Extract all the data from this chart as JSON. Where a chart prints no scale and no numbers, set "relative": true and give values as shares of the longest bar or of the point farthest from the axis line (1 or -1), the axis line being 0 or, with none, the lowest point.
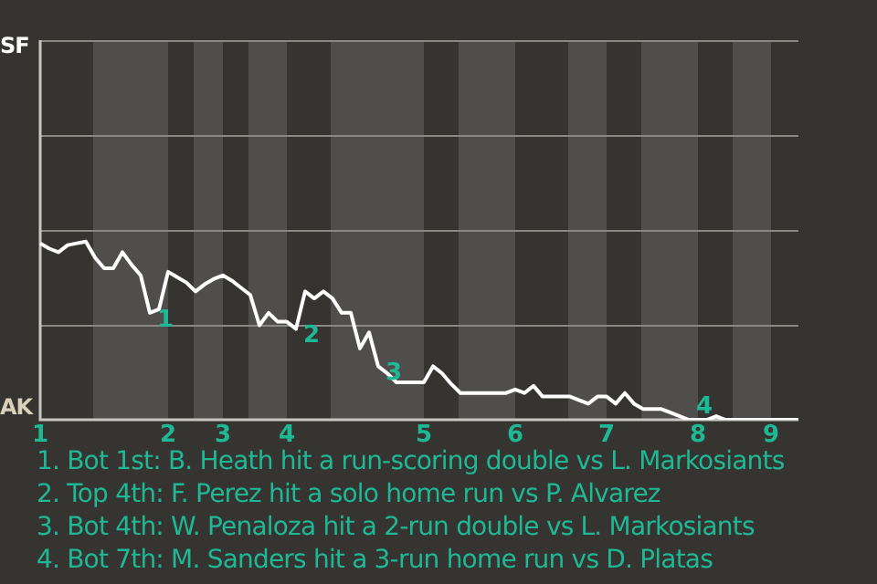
{
  "chart_data": {
    "type": "line",
    "relative": true,
    "categories": [
      "1",
      null,
      null,
      null,
      null,
      null,
      null,
      null,
      null,
      null,
      null,
      null,
      null,
      null,
      "2",
      null,
      null,
      null,
      null,
      null,
      "3",
      null,
      null,
      null,
      null,
      null,
      null,
      "4",
      null,
      null,
      null,
      null,
      null,
      null,
      null,
      null,
      null,
      null,
      null,
      null,
      null,
      null,
      "5",
      null,
      null,
      null,
      null,
      null,
      null,
      null,
      null,
      null,
      "6",
      null,
      null,
      null,
      null,
      null,
      null,
      null,
      null,
      null,
      "7",
      null,
      null,
      null,
      null,
      null,
      null,
      null,
      null,
      null,
      "8",
      null,
      null,
      null,
      null,
      null,
      null,
      null,
      "9",
      null,
      null,
      null
    ],
    "series": [
      {
        "color": "#ffffff",
        "values": [
          0.99,
          0.96,
          0.94,
          0.98,
          0.99,
          1,
          0.91,
          0.85,
          0.85,
          0.94,
          0.87,
          0.81,
          0.6,
          0.62,
          0.83,
          0.8,
          0.77,
          0.72,
          0.76,
          0.79,
          0.81,
          0.78,
          0.74,
          0.7,
          0.53,
          0.6,
          0.55,
          0.55,
          0.51,
          0.72,
          0.68,
          0.72,
          0.68,
          0.6,
          0.6,
          0.4,
          0.49,
          0.3,
          0.26,
          0.21,
          0.21,
          0.21,
          0.21,
          0.3,
          0.26,
          0.2,
          0.15,
          0.15,
          0.15,
          0.15,
          0.15,
          0.15,
          0.17,
          0.15,
          0.19,
          0.13,
          0.13,
          0.13,
          0.13,
          0.11,
          0.09,
          0.13,
          0.13,
          0.09,
          0.15,
          0.09,
          0.06,
          0.06,
          0.06,
          0.04,
          0.02,
          0,
          0,
          0,
          0.02,
          0,
          0,
          0,
          0,
          0,
          0,
          0,
          0,
          0
        ]
      }
    ],
    "value_labels": [
      null,
      null,
      null,
      null,
      null,
      null,
      null,
      null,
      null,
      null,
      null,
      null,
      "1",
      null,
      null,
      null,
      null,
      null,
      null,
      null,
      null,
      null,
      null,
      null,
      null,
      null,
      null,
      null,
      "2",
      null,
      null,
      null,
      null,
      null,
      null,
      null,
      null,
      "3",
      null,
      null,
      null,
      null,
      null,
      null,
      null,
      null,
      null,
      null,
      null,
      null,
      null,
      null,
      null,
      null,
      null,
      null,
      null,
      null,
      null,
      null,
      null,
      null,
      null,
      null,
      null,
      null,
      null,
      null,
      null,
      null,
      null,
      "4",
      null,
      null,
      null,
      null,
      null,
      null,
      null,
      null,
      null,
      null,
      null,
      null
    ],
    "ref_lines": [
      {
        "axis": "y",
        "value": 0.53,
        "color": "#8a8883"
      },
      {
        "axis": "y",
        "value": 1.06,
        "color": "#8a8883"
      },
      {
        "axis": "y",
        "value": 1.6,
        "color": "#8a8883"
      }
    ],
    "legend": false,
    "marker": "none",
    "line_style": "solid",
    "annotations": [
      "SF",
      "AK",
      "1. Bot 1st: B. Heath hit a run-scoring double vs L. Markosiants",
      "2. Top 4th: F. Perez hit a solo home run vs P. Alvarez",
      "3. Bot 4th: W. Penaloza hit a 2-run double vs L. Markosiants",
      "4. Bot 7th: M. Sanders hit a 3-run home run vs D. Platas"
    ]
  }
}
